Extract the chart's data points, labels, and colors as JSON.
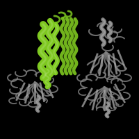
{
  "background_color": "#000000",
  "figsize": [
    2.0,
    2.0
  ],
  "dpi": 100,
  "green_color": "#7ec820",
  "gray_color": "#808080",
  "light_gray": "#aaaaaa",
  "dark_gray": "#505050"
}
